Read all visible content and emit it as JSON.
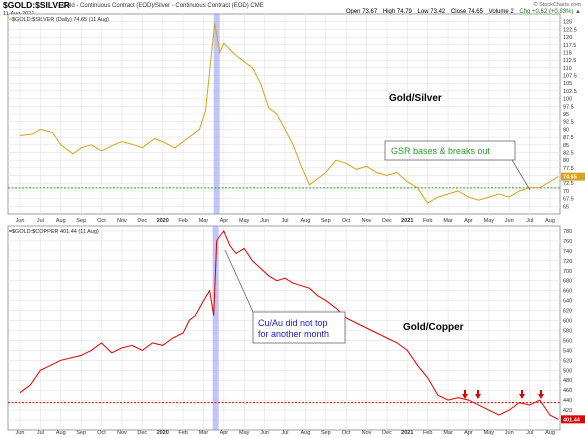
{
  "header": {
    "title": "$GOLD:$SILVER",
    "subtitle": "Gold - Continuous Contract (EOD)/Silver - Continuous Contract (EOD) CME",
    "date": "11-Aug-2021",
    "watermark": "© StockCharts.com",
    "ohlc": {
      "open": "Open 73.67",
      "high": "High 74.79",
      "low": "Low 73.42",
      "close": "Close 74.65",
      "volume": "Volume 2",
      "chg": "Chg +0.62 (+0.83%) ▲"
    }
  },
  "colors": {
    "gold_silver": "#d9a21b",
    "gold_copper": "#e00000",
    "highlight": "#8f96f0",
    "green_line": "#2a9a2a",
    "red_line": "#e00000",
    "annotation_green": "#2a9a2a",
    "annotation_blue": "#1a1ad0"
  },
  "x_axis": {
    "labels": [
      "Jun",
      "Jul",
      "Aug",
      "Sep",
      "Oct",
      "Nov",
      "Dec",
      "2020",
      "Feb",
      "Mar",
      "Apr",
      "May",
      "Jun",
      "Jul",
      "Aug",
      "Sep",
      "Oct",
      "Nov",
      "Dec",
      "2021",
      "Feb",
      "Mar",
      "Apr",
      "May",
      "Jun",
      "Jul",
      "Aug"
    ],
    "bold": [
      "2020",
      "2021"
    ]
  },
  "chart_data": [
    {
      "type": "line",
      "legend": "$GOLD:$SILVER (Daily) 74.65 (11 Aug)",
      "panel_label": "Gold/Silver",
      "annotation": "GSR bases & breaks out",
      "last_value_label": "74.65",
      "ylim": [
        62.5,
        127.5
      ],
      "yticks": [
        65,
        67.5,
        70,
        72.5,
        75,
        77.5,
        80,
        82.5,
        85,
        87.5,
        90,
        92.5,
        95,
        97.5,
        100,
        102.5,
        105,
        107.5,
        110,
        112.5,
        115,
        117.5,
        120,
        122.5,
        125
      ],
      "hline": 71,
      "x": [
        0,
        0.6,
        1,
        1.6,
        2,
        2.6,
        3,
        3.5,
        4,
        4.6,
        5,
        5.6,
        6,
        6.6,
        7,
        7.6,
        8,
        8.4,
        8.8,
        9.1,
        9.4,
        9.55,
        9.7,
        9.8,
        10,
        10.3,
        10.6,
        11,
        11.4,
        11.8,
        12.2,
        12.6,
        13,
        13.4,
        13.8,
        14.2,
        14.6,
        15,
        15.5,
        16,
        16.5,
        17,
        17.5,
        18,
        18.5,
        19,
        19.5,
        20,
        20.5,
        21,
        21.5,
        22,
        22.5,
        23,
        23.5,
        24,
        24.5,
        25,
        25.5,
        26,
        26.4
      ],
      "values": [
        88,
        88.5,
        90,
        89,
        85,
        82,
        84,
        85,
        83,
        85,
        86,
        85,
        84,
        87,
        86,
        84,
        86,
        88,
        90,
        96,
        115,
        124.5,
        119,
        115,
        118,
        116,
        114,
        112,
        110,
        105,
        97,
        95,
        90,
        85,
        78,
        72,
        74,
        76,
        80,
        79,
        77,
        78,
        76,
        75,
        76,
        73,
        71,
        66,
        68,
        69,
        70,
        68,
        67,
        68,
        69,
        68,
        70,
        71,
        71,
        73,
        74.65
      ]
    },
    {
      "type": "line",
      "legend": "$GOLD:$COPPER 401.44 (11 Aug)",
      "panel_label": "Gold/Copper",
      "annotation": "Cu/Au did not top\nfor another month",
      "last_value_label": "401.44",
      "ylim": [
        380,
        790
      ],
      "yticks": [
        400,
        420,
        440,
        460,
        480,
        500,
        520,
        540,
        560,
        580,
        600,
        620,
        640,
        660,
        680,
        700,
        720,
        740,
        760,
        780
      ],
      "hline": 435,
      "x": [
        0,
        0.5,
        1,
        1.5,
        2,
        2.5,
        3,
        3.5,
        4,
        4.5,
        5,
        5.5,
        6,
        6.5,
        7,
        7.5,
        8,
        8.3,
        8.6,
        9,
        9.3,
        9.5,
        9.65,
        9.8,
        10,
        10.3,
        10.6,
        11,
        11.4,
        11.8,
        12.2,
        12.6,
        13,
        13.4,
        13.8,
        14.2,
        14.6,
        15,
        15.5,
        16,
        16.5,
        17,
        17.5,
        18,
        18.5,
        19,
        19.5,
        20,
        20.5,
        21,
        21.5,
        22,
        22.5,
        23,
        23.5,
        24,
        24.5,
        25,
        25.5,
        26,
        26.4
      ],
      "values": [
        455,
        470,
        500,
        510,
        520,
        525,
        530,
        540,
        555,
        535,
        545,
        550,
        540,
        555,
        550,
        565,
        575,
        600,
        610,
        640,
        660,
        610,
        760,
        770,
        780,
        750,
        735,
        745,
        720,
        705,
        690,
        680,
        685,
        675,
        670,
        665,
        650,
        640,
        625,
        605,
        595,
        585,
        575,
        565,
        555,
        540,
        510,
        485,
        450,
        440,
        445,
        440,
        430,
        420,
        410,
        420,
        435,
        430,
        440,
        410,
        401.44
      ]
    }
  ]
}
